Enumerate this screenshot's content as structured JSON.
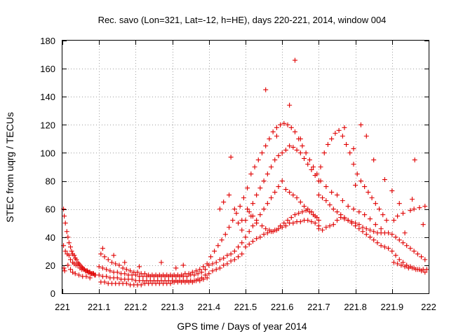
{
  "chart_data": {
    "type": "scatter",
    "title": "Rec. savo (Lon=321, Lat=-12, h=HE), days 220-221, 2014, window 004",
    "xlabel": "GPS time / Days of year 2014",
    "ylabel": "STEC from uqrg / TECUs",
    "xlim": [
      221,
      222
    ],
    "ylim": [
      0,
      180
    ],
    "xticks": [
      221,
      221.1,
      221.2,
      221.3,
      221.4,
      221.5,
      221.6,
      221.7,
      221.8,
      221.9,
      222
    ],
    "xtick_labels": [
      "221",
      "221.1",
      "221.2",
      "221.3",
      "221.4",
      "221.5",
      "221.6",
      "221.7",
      "221.8",
      "221.9",
      "222"
    ],
    "yticks": [
      0,
      20,
      40,
      60,
      80,
      100,
      120,
      140,
      160,
      180
    ],
    "ytick_labels": [
      "0",
      "20",
      "40",
      "60",
      "80",
      "100",
      "120",
      "140",
      "160",
      "180"
    ],
    "grid": true,
    "marker": "+",
    "color": "#e00000",
    "series": [
      {
        "name": "STEC",
        "x": [
          221.003,
          221.005,
          221.008,
          221.012,
          221.015,
          221.018,
          221.022,
          221.025,
          221.028,
          221.032,
          221.035,
          221.038,
          221.042,
          221.045,
          221.048,
          221.052,
          221.055,
          221.06,
          221.065,
          221.07,
          221.075,
          221.08,
          221.085,
          221.09,
          221.003,
          221.008,
          221.013,
          221.018,
          221.022,
          221.028,
          221.032,
          221.037,
          221.042,
          221.048,
          221.053,
          221.058,
          221.063,
          221.068,
          221.073,
          221.078,
          221.083,
          221.088,
          221.004,
          221.006,
          221.015,
          221.022,
          221.028,
          221.035,
          221.045,
          221.055,
          221.065,
          221.075,
          221.1,
          221.11,
          221.12,
          221.13,
          221.14,
          221.15,
          221.16,
          221.17,
          221.18,
          221.19,
          221.2,
          221.21,
          221.22,
          221.23,
          221.24,
          221.25,
          221.26,
          221.27,
          221.28,
          221.29,
          221.3,
          221.31,
          221.32,
          221.33,
          221.34,
          221.35,
          221.36,
          221.37,
          221.38,
          221.39,
          221.1,
          221.11,
          221.12,
          221.13,
          221.14,
          221.15,
          221.16,
          221.17,
          221.18,
          221.19,
          221.2,
          221.21,
          221.22,
          221.23,
          221.24,
          221.25,
          221.26,
          221.27,
          221.28,
          221.29,
          221.3,
          221.31,
          221.32,
          221.33,
          221.34,
          221.35,
          221.36,
          221.37,
          221.38,
          221.39,
          221.105,
          221.115,
          221.125,
          221.135,
          221.145,
          221.155,
          221.165,
          221.175,
          221.185,
          221.195,
          221.205,
          221.215,
          221.225,
          221.235,
          221.245,
          221.255,
          221.265,
          221.275,
          221.285,
          221.295,
          221.305,
          221.315,
          221.325,
          221.335,
          221.345,
          221.355,
          221.365,
          221.375,
          221.385,
          221.395,
          221.105,
          221.115,
          221.125,
          221.135,
          221.145,
          221.155,
          221.165,
          221.175,
          221.185,
          221.195,
          221.205,
          221.215,
          221.225,
          221.235,
          221.245,
          221.255,
          221.265,
          221.275,
          221.285,
          221.295,
          221.305,
          221.315,
          221.325,
          221.335,
          221.345,
          221.355,
          221.365,
          221.375,
          221.385,
          221.395,
          221.11,
          221.14,
          221.17,
          221.21,
          221.27,
          221.31,
          221.33,
          221.4,
          221.41,
          221.42,
          221.43,
          221.44,
          221.45,
          221.46,
          221.47,
          221.48,
          221.49,
          221.4,
          221.41,
          221.42,
          221.43,
          221.44,
          221.45,
          221.46,
          221.47,
          221.48,
          221.49,
          221.405,
          221.415,
          221.425,
          221.435,
          221.445,
          221.455,
          221.465,
          221.475,
          221.485,
          221.495,
          221.43,
          221.44,
          221.455,
          221.46,
          221.47,
          221.48,
          221.49,
          221.5,
          221.51,
          221.52,
          221.53,
          221.54,
          221.55,
          221.56,
          221.57,
          221.58,
          221.59,
          221.6,
          221.61,
          221.62,
          221.63,
          221.64,
          221.65,
          221.66,
          221.67,
          221.68,
          221.69,
          221.7,
          221.5,
          221.51,
          221.52,
          221.53,
          221.54,
          221.55,
          221.56,
          221.57,
          221.58,
          221.59,
          221.6,
          221.61,
          221.62,
          221.63,
          221.64,
          221.65,
          221.66,
          221.67,
          221.68,
          221.69,
          221.7,
          221.5,
          221.51,
          221.52,
          221.53,
          221.54,
          221.55,
          221.56,
          221.57,
          221.58,
          221.59,
          221.6,
          221.61,
          221.62,
          221.63,
          221.64,
          221.65,
          221.66,
          221.67,
          221.68,
          221.69,
          221.7,
          221.505,
          221.515,
          221.525,
          221.535,
          221.545,
          221.555,
          221.565,
          221.575,
          221.585,
          221.595,
          221.605,
          221.615,
          221.625,
          221.635,
          221.645,
          221.655,
          221.665,
          221.675,
          221.685,
          221.695,
          221.505,
          221.52,
          221.53,
          221.545,
          221.555,
          221.565,
          221.575,
          221.585,
          221.595,
          221.605,
          221.615,
          221.625,
          221.635,
          221.645,
          221.655,
          221.665,
          221.675,
          221.685,
          221.695,
          221.49,
          221.515,
          221.555,
          221.585,
          221.62,
          221.635,
          221.65,
          221.7,
          221.71,
          221.72,
          221.73,
          221.74,
          221.75,
          221.76,
          221.77,
          221.78,
          221.79,
          221.8,
          221.81,
          221.82,
          221.83,
          221.84,
          221.85,
          221.86,
          221.87,
          221.88,
          221.89,
          221.7,
          221.71,
          221.72,
          221.73,
          221.74,
          221.75,
          221.76,
          221.77,
          221.78,
          221.79,
          221.8,
          221.81,
          221.82,
          221.83,
          221.84,
          221.85,
          221.86,
          221.87,
          221.88,
          221.89,
          221.705,
          221.715,
          221.725,
          221.735,
          221.745,
          221.755,
          221.765,
          221.775,
          221.785,
          221.795,
          221.805,
          221.815,
          221.825,
          221.835,
          221.845,
          221.855,
          221.865,
          221.875,
          221.885,
          221.705,
          221.72,
          221.735,
          221.75,
          221.765,
          221.78,
          221.795,
          221.81,
          221.825,
          221.84,
          221.855,
          221.87,
          221.77,
          221.795,
          221.8,
          221.815,
          221.83,
          221.85,
          221.88,
          221.9,
          221.91,
          221.92,
          221.93,
          221.94,
          221.95,
          221.96,
          221.97,
          221.98,
          221.99,
          221.9,
          221.91,
          221.92,
          221.93,
          221.94,
          221.95,
          221.96,
          221.97,
          221.98,
          221.99,
          221.905,
          221.915,
          221.925,
          221.935,
          221.945,
          221.955,
          221.965,
          221.975,
          221.985,
          221.995,
          221.905,
          221.915,
          221.93,
          221.95,
          221.96,
          221.975,
          221.99,
          221.9,
          221.92,
          221.935,
          221.955,
          221.962,
          221.985
        ],
        "y": [
          60,
          55,
          50,
          44,
          40,
          36,
          33,
          30,
          28,
          27,
          25,
          24,
          22,
          21,
          20,
          19,
          18,
          17,
          16,
          15,
          15,
          14,
          14,
          13,
          34,
          30,
          28,
          27,
          24,
          22,
          21,
          20,
          20,
          18,
          17,
          17,
          16,
          16,
          15,
          14,
          14,
          13,
          18,
          16,
          20,
          17,
          15,
          14,
          13,
          12,
          12,
          11,
          13,
          12,
          12,
          11,
          11,
          11,
          10,
          10,
          10,
          10,
          9,
          9,
          9,
          9,
          9,
          9,
          9,
          9,
          9,
          9,
          9,
          9,
          9,
          9,
          9,
          9,
          9,
          10,
          11,
          13,
          19,
          18,
          17,
          16,
          15,
          15,
          14,
          14,
          13,
          13,
          13,
          12,
          12,
          12,
          12,
          12,
          12,
          12,
          12,
          12,
          12,
          12,
          12,
          12,
          12,
          13,
          13,
          14,
          15,
          17,
          28,
          26,
          24,
          22,
          21,
          20,
          18,
          17,
          16,
          15,
          15,
          14,
          14,
          13,
          13,
          13,
          13,
          13,
          13,
          13,
          13,
          13,
          13,
          14,
          14,
          15,
          16,
          17,
          19,
          21,
          8,
          8,
          7,
          7,
          7,
          7,
          7,
          7,
          6,
          6,
          6,
          6,
          7,
          7,
          7,
          7,
          7,
          7,
          7,
          7,
          8,
          8,
          8,
          8,
          8,
          8,
          9,
          9,
          10,
          11,
          32,
          27,
          22,
          19,
          22,
          18,
          20,
          14,
          16,
          17,
          18,
          20,
          21,
          23,
          24,
          26,
          28,
          20,
          21,
          22,
          24,
          25,
          27,
          28,
          30,
          33,
          36,
          26,
          30,
          34,
          38,
          42,
          47,
          52,
          57,
          62,
          68,
          60,
          65,
          70,
          97,
          60,
          50,
          45,
          33,
          35,
          37,
          39,
          40,
          42,
          43,
          44,
          45,
          46,
          47,
          48,
          50,
          50,
          51,
          51,
          52,
          52,
          51,
          50,
          48,
          40,
          44,
          48,
          52,
          56,
          60,
          64,
          68,
          72,
          76,
          80,
          74,
          72,
          70,
          68,
          65,
          62,
          60,
          58,
          55,
          52,
          52,
          58,
          64,
          70,
          75,
          80,
          85,
          90,
          95,
          98,
          100,
          102,
          105,
          104,
          102,
          100,
          96,
          92,
          88,
          84,
          80,
          75,
          85,
          90,
          95,
          100,
          105,
          110,
          115,
          118,
          120,
          121,
          120,
          118,
          115,
          110,
          105,
          100,
          95,
          90,
          85,
          60,
          55,
          50,
          48,
          46,
          45,
          44,
          45,
          48,
          50,
          52,
          54,
          56,
          57,
          58,
          59,
          58,
          56,
          54,
          52,
          55,
          145,
          112,
          134,
          166,
          110,
          46,
          45,
          47,
          48,
          49,
          52,
          54,
          53,
          52,
          51,
          50,
          49,
          47,
          46,
          45,
          44,
          43,
          43,
          43,
          43,
          70,
          68,
          66,
          63,
          60,
          58,
          56,
          54,
          52,
          50,
          48,
          46,
          44,
          42,
          40,
          38,
          36,
          34,
          33,
          32,
          90,
          100,
          106,
          110,
          114,
          116,
          112,
          106,
          100,
          92,
          85,
          80,
          76,
          72,
          68,
          64,
          60,
          56,
          52,
          80,
          76,
          72,
          70,
          66,
          62,
          60,
          58,
          56,
          53,
          49,
          46,
          118,
          103,
          77,
          120,
          112,
          95,
          81,
          42,
          40,
          38,
          36,
          34,
          32,
          30,
          28,
          26,
          24,
          30,
          27,
          24,
          22,
          20,
          19,
          18,
          17,
          16,
          15,
          22,
          21,
          20,
          19,
          18,
          18,
          17,
          17,
          17,
          17,
          52,
          55,
          57,
          59,
          60,
          61,
          62,
          73,
          64,
          43,
          67,
          95,
          49
        ]
      }
    ]
  }
}
